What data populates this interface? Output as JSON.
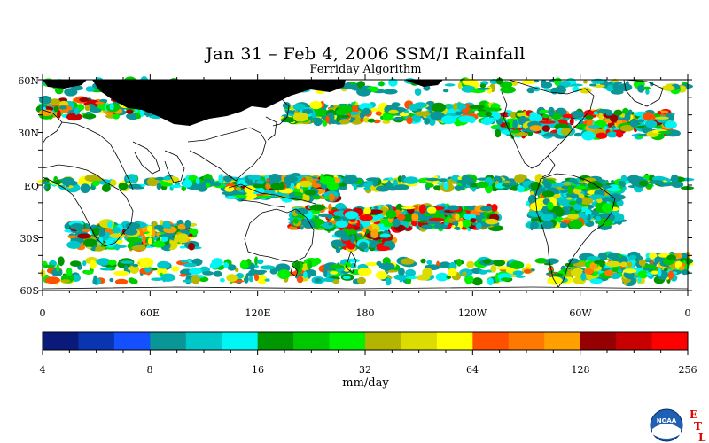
{
  "title": "Jan 31 – Feb 4, 2006 SSM/I Rainfall",
  "subtitle": "Ferriday Algorithm",
  "lat_labels": [
    "60N",
    "30N",
    "EQ",
    "30S",
    "60S"
  ],
  "lon_labels": [
    "0",
    "60E",
    "120E",
    "180",
    "120W",
    "60W",
    "0"
  ],
  "colorbar": {
    "colors": [
      "#0a1a7a",
      "#0a35b0",
      "#1450ff",
      "#0a9696",
      "#00c8c8",
      "#00f5f5",
      "#009600",
      "#00c800",
      "#00f000",
      "#b4b400",
      "#dcdc00",
      "#ffff00",
      "#ff5000",
      "#ff7800",
      "#ffa000",
      "#960000",
      "#c80000",
      "#ff0000"
    ],
    "tick_labels": [
      "4",
      "8",
      "16",
      "32",
      "64",
      "128",
      "256"
    ],
    "units": "mm/day"
  },
  "logo": {
    "noaa_text": "NOAA",
    "etl_letters": [
      "E",
      "T",
      "L"
    ]
  }
}
